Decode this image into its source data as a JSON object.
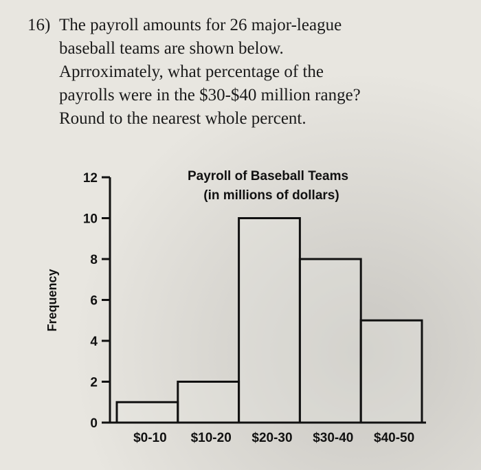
{
  "question": {
    "number": "16)",
    "lines": [
      "The payroll amounts for 26 major-league",
      "baseball teams are shown below.",
      "Aprroximately, what percentage of the",
      "payrolls were in the $30-$40 million range?",
      "Round to the nearest whole percent."
    ]
  },
  "chart_data": {
    "type": "bar",
    "title": "Payroll of Baseball Teams",
    "subtitle": "(in millions of dollars)",
    "y_label": "Frequency",
    "categories": [
      "$0-10",
      "$10-20",
      "$20-30",
      "$30-40",
      "$40-50"
    ],
    "values": [
      1,
      2,
      10,
      8,
      5
    ],
    "color": "#111111",
    "ylim": [
      0,
      12
    ],
    "yticks": [
      0,
      2,
      4,
      6,
      8,
      10,
      12
    ]
  }
}
